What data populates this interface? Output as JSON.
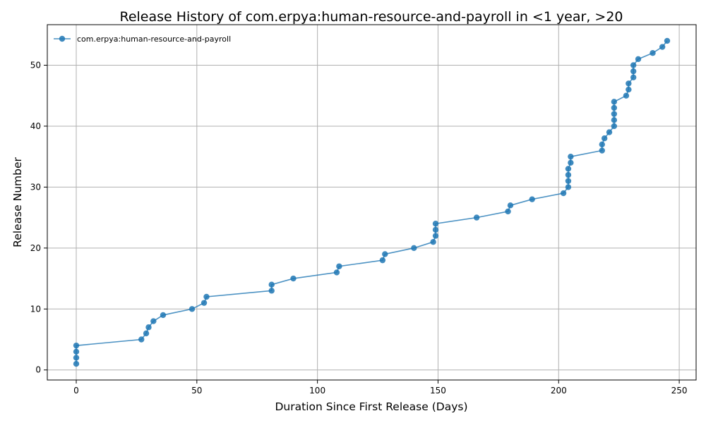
{
  "chart_data": {
    "type": "line",
    "title": "Release History of com.erpya:human-resource-and-payroll in <1 year, >20",
    "xlabel": "Duration Since First Release (Days)",
    "ylabel": "Release Number",
    "xlim": [
      -12,
      257
    ],
    "ylim": [
      -1.65,
      56.65
    ],
    "x_ticks": [
      0,
      50,
      100,
      150,
      200,
      250
    ],
    "y_ticks": [
      0,
      10,
      20,
      30,
      40,
      50
    ],
    "grid": true,
    "legend_position": "upper-left",
    "colors": {
      "series": "#1f77b4",
      "grid": "#b0b0b0"
    },
    "series": [
      {
        "name": "com.erpya:human-resource-and-payroll",
        "marker": "circle",
        "points": [
          [
            0,
            1
          ],
          [
            0,
            2
          ],
          [
            0,
            3
          ],
          [
            0,
            4
          ],
          [
            27,
            5
          ],
          [
            29,
            6
          ],
          [
            30,
            7
          ],
          [
            32,
            8
          ],
          [
            36,
            9
          ],
          [
            48,
            10
          ],
          [
            53,
            11
          ],
          [
            54,
            12
          ],
          [
            81,
            13
          ],
          [
            81,
            14
          ],
          [
            90,
            15
          ],
          [
            108,
            16
          ],
          [
            109,
            17
          ],
          [
            127,
            18
          ],
          [
            128,
            19
          ],
          [
            140,
            20
          ],
          [
            148,
            21
          ],
          [
            149,
            22
          ],
          [
            149,
            23
          ],
          [
            149,
            24
          ],
          [
            166,
            25
          ],
          [
            179,
            26
          ],
          [
            180,
            27
          ],
          [
            189,
            28
          ],
          [
            202,
            29
          ],
          [
            204,
            30
          ],
          [
            204,
            31
          ],
          [
            204,
            32
          ],
          [
            204,
            33
          ],
          [
            205,
            34
          ],
          [
            205,
            35
          ],
          [
            218,
            36
          ],
          [
            218,
            37
          ],
          [
            219,
            38
          ],
          [
            221,
            39
          ],
          [
            223,
            40
          ],
          [
            223,
            41
          ],
          [
            223,
            42
          ],
          [
            223,
            43
          ],
          [
            223,
            44
          ],
          [
            228,
            45
          ],
          [
            229,
            46
          ],
          [
            229,
            47
          ],
          [
            231,
            48
          ],
          [
            231,
            49
          ],
          [
            231,
            50
          ],
          [
            233,
            51
          ],
          [
            239,
            52
          ],
          [
            243,
            53
          ],
          [
            245,
            54
          ]
        ]
      }
    ]
  }
}
